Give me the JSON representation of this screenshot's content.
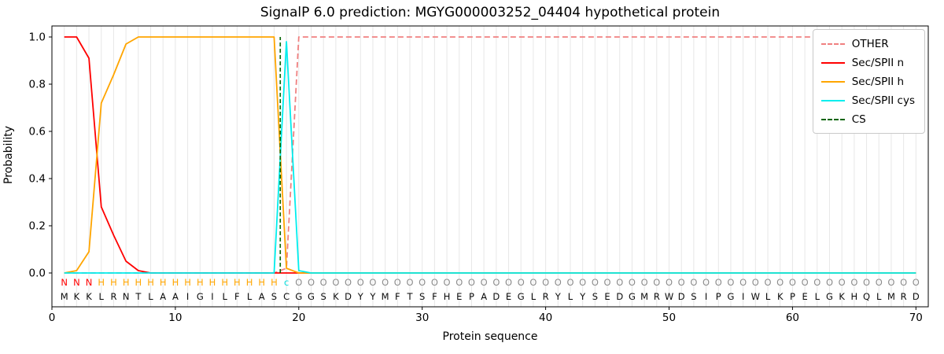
{
  "chart_data": {
    "type": "line",
    "title": "SignalP 6.0 prediction: MGYG000003252_04404 hypothetical protein",
    "xlabel": "Protein sequence",
    "ylabel": "Probability",
    "xlim": [
      0,
      71
    ],
    "ylim": [
      -0.15,
      1.05
    ],
    "xticks": [
      0,
      10,
      20,
      30,
      40,
      50,
      60,
      70
    ],
    "yticks": [
      0.0,
      0.2,
      0.4,
      0.6,
      0.8,
      1.0
    ],
    "grid": {
      "vertical_per_residue": true,
      "color": "#e7e7e7"
    },
    "x_start": 1,
    "sequence": "MKKLRNTLAAIGILFLASCGGSKDYYMFTSFHEPADEGLRYLYSEDGMRWDSIPGIWLKPELGKHQLMRD",
    "annotation_rows": {
      "labels": [
        {
          "char": "N",
          "from": 1,
          "to": 3,
          "color": "#ff0000"
        },
        {
          "char": "H",
          "from": 4,
          "to": 18,
          "color": "#ffa500"
        },
        {
          "char": "c",
          "from": 19,
          "to": 19,
          "color": "#00dddd"
        },
        {
          "char": "O",
          "from": 20,
          "to": 70,
          "color": "#8c8c8c"
        }
      ]
    },
    "series": [
      {
        "name": "OTHER",
        "color": "#f08080",
        "dash": "dashed",
        "values": [
          0,
          0,
          0,
          0,
          0,
          0,
          0,
          0,
          0,
          0,
          0,
          0,
          0,
          0,
          0,
          0,
          0,
          0,
          0.02,
          1.0,
          1.0,
          1.0,
          1.0,
          1.0,
          1.0,
          1.0,
          1.0,
          1.0,
          1.0,
          1.0,
          1.0,
          1.0,
          1.0,
          1.0,
          1.0,
          1.0,
          1.0,
          1.0,
          1.0,
          1.0,
          1.0,
          1.0,
          1.0,
          1.0,
          1.0,
          1.0,
          1.0,
          1.0,
          1.0,
          1.0,
          1.0,
          1.0,
          1.0,
          1.0,
          1.0,
          1.0,
          1.0,
          1.0,
          1.0,
          1.0,
          1.0,
          1.0,
          1.0,
          1.0,
          1.0,
          1.0,
          1.0,
          1.0,
          1.0,
          1.0
        ]
      },
      {
        "name": "Sec/SPII n",
        "color": "#ff0000",
        "dash": "solid",
        "values": [
          1.0,
          1.0,
          0.91,
          0.28,
          0.16,
          0.05,
          0.01,
          0,
          0,
          0,
          0,
          0,
          0,
          0,
          0,
          0,
          0,
          0,
          0,
          0,
          0,
          0,
          0,
          0,
          0,
          0,
          0,
          0,
          0,
          0,
          0,
          0,
          0,
          0,
          0,
          0,
          0,
          0,
          0,
          0,
          0,
          0,
          0,
          0,
          0,
          0,
          0,
          0,
          0,
          0,
          0,
          0,
          0,
          0,
          0,
          0,
          0,
          0,
          0,
          0,
          0,
          0,
          0,
          0,
          0,
          0,
          0,
          0,
          0,
          0
        ]
      },
      {
        "name": "Sec/SPII h",
        "color": "#ffa500",
        "dash": "solid",
        "values": [
          0,
          0.01,
          0.09,
          0.72,
          0.84,
          0.97,
          1.0,
          1.0,
          1.0,
          1.0,
          1.0,
          1.0,
          1.0,
          1.0,
          1.0,
          1.0,
          1.0,
          1.0,
          0.02,
          0,
          0,
          0,
          0,
          0,
          0,
          0,
          0,
          0,
          0,
          0,
          0,
          0,
          0,
          0,
          0,
          0,
          0,
          0,
          0,
          0,
          0,
          0,
          0,
          0,
          0,
          0,
          0,
          0,
          0,
          0,
          0,
          0,
          0,
          0,
          0,
          0,
          0,
          0,
          0,
          0,
          0,
          0,
          0,
          0,
          0,
          0,
          0,
          0,
          0,
          0
        ]
      },
      {
        "name": "Sec/SPII cys",
        "color": "#00eeee",
        "dash": "solid",
        "values": [
          0,
          0,
          0,
          0,
          0,
          0,
          0,
          0,
          0,
          0,
          0,
          0,
          0,
          0,
          0,
          0,
          0,
          0,
          0.98,
          0.01,
          0,
          0,
          0,
          0,
          0,
          0,
          0,
          0,
          0,
          0,
          0,
          0,
          0,
          0,
          0,
          0,
          0,
          0,
          0,
          0,
          0,
          0,
          0,
          0,
          0,
          0,
          0,
          0,
          0,
          0,
          0,
          0,
          0,
          0,
          0,
          0,
          0,
          0,
          0,
          0,
          0,
          0,
          0,
          0,
          0,
          0,
          0,
          0,
          0,
          0
        ]
      }
    ],
    "cs_marker": {
      "name": "CS",
      "x": 18.5,
      "color": "#006400",
      "style": "dashed"
    },
    "legend": {
      "position": "upper right"
    }
  }
}
